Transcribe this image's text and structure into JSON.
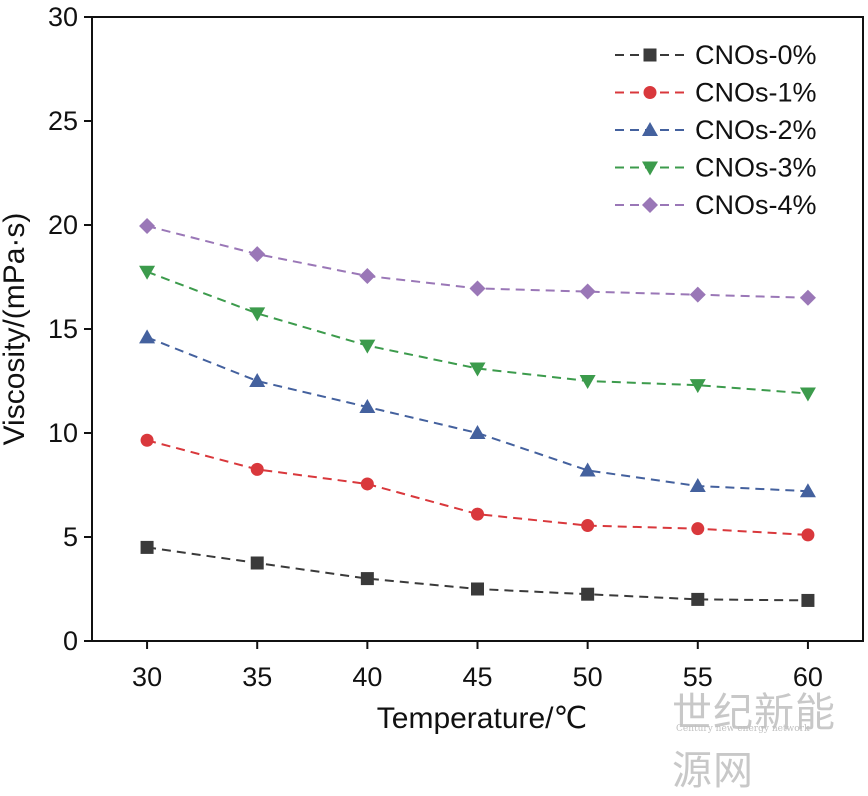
{
  "chart_data": {
    "type": "line",
    "xlabel": "Temperature/℃",
    "ylabel": "Viscosity/(mPa·s)",
    "x": [
      30,
      35,
      40,
      45,
      50,
      55,
      60
    ],
    "xlim": [
      27.5,
      62.5
    ],
    "ylim": [
      0,
      30
    ],
    "xticks": [
      "30",
      "35",
      "40",
      "45",
      "50",
      "55",
      "60"
    ],
    "yticks": [
      "0",
      "5",
      "10",
      "15",
      "20",
      "25",
      "30"
    ],
    "legend_position": "top-right",
    "grid": false,
    "line_style": "dashed",
    "series": [
      {
        "name": "CNOs-0%",
        "color": "#3a3a3a",
        "marker": "square",
        "values": [
          4.5,
          3.75,
          3.0,
          2.5,
          2.25,
          2.0,
          1.95
        ]
      },
      {
        "name": "CNOs-1%",
        "color": "#d9383c",
        "marker": "circle",
        "values": [
          9.65,
          8.25,
          7.55,
          6.1,
          5.55,
          5.4,
          5.1
        ]
      },
      {
        "name": "CNOs-2%",
        "color": "#44619e",
        "marker": "triangle-up",
        "values": [
          14.6,
          12.5,
          11.25,
          10.0,
          8.2,
          7.45,
          7.2
        ]
      },
      {
        "name": "CNOs-3%",
        "color": "#3c9b4c",
        "marker": "triangle-down",
        "values": [
          17.75,
          15.75,
          14.2,
          13.1,
          12.5,
          12.3,
          11.9
        ]
      },
      {
        "name": "CNOs-4%",
        "color": "#9a77b7",
        "marker": "diamond",
        "values": [
          19.95,
          18.6,
          17.55,
          16.95,
          16.8,
          16.65,
          16.5
        ]
      }
    ]
  },
  "watermark": {
    "text_cn": "世纪新能源网",
    "text_en": "Century new energy network"
  }
}
